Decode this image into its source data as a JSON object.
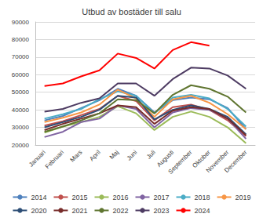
{
  "chart_data": {
    "type": "line",
    "title": "Utbud av bostäder till salu",
    "categories": [
      "Januari",
      "Februari",
      "Mars",
      "April",
      "Maj",
      "Juni",
      "Juli",
      "Augusti",
      "September",
      "Oktober",
      "November",
      "December"
    ],
    "series": [
      {
        "name": "2014",
        "color": "#4f81bd",
        "values": [
          34000,
          36500,
          41000,
          45500,
          52000,
          48000,
          38500,
          45500,
          47000,
          46000,
          41000,
          29000
        ]
      },
      {
        "name": "2015",
        "color": "#c0504d",
        "values": [
          31000,
          33500,
          37000,
          40500,
          48000,
          45000,
          34000,
          41500,
          43000,
          40000,
          34000,
          25000
        ]
      },
      {
        "name": "2016",
        "color": "#9bbb59",
        "values": [
          27000,
          30500,
          33000,
          36000,
          42000,
          38000,
          28500,
          36000,
          39000,
          36000,
          30000,
          21000
        ]
      },
      {
        "name": "2017",
        "color": "#8064a2",
        "values": [
          24500,
          27500,
          33000,
          35000,
          42500,
          40500,
          30000,
          38500,
          41000,
          40000,
          35000,
          23500
        ]
      },
      {
        "name": "2018",
        "color": "#4bacc6",
        "values": [
          35000,
          37500,
          40500,
          46000,
          50500,
          48000,
          38000,
          47000,
          48500,
          46500,
          40500,
          30500
        ]
      },
      {
        "name": "2019",
        "color": "#f79646",
        "values": [
          33000,
          35500,
          38500,
          43000,
          51500,
          46500,
          36000,
          46000,
          48000,
          44000,
          37500,
          29000
        ]
      },
      {
        "name": "2020",
        "color": "#2c4d75",
        "values": [
          30000,
          33000,
          36000,
          40000,
          48000,
          47000,
          34500,
          40000,
          42500,
          40500,
          36000,
          26000
        ]
      },
      {
        "name": "2021",
        "color": "#772c2a",
        "values": [
          28500,
          32000,
          35000,
          38000,
          42500,
          41500,
          32000,
          39500,
          41500,
          40500,
          35000,
          25500
        ]
      },
      {
        "name": "2022",
        "color": "#5f7530",
        "values": [
          27500,
          30500,
          34000,
          38000,
          46000,
          45500,
          38000,
          48500,
          54000,
          52000,
          47500,
          38500
        ]
      },
      {
        "name": "2023",
        "color": "#4d3b62",
        "values": [
          39000,
          40500,
          44000,
          46500,
          55000,
          55000,
          48000,
          57500,
          64000,
          63500,
          59500,
          52000
        ]
      },
      {
        "name": "2024",
        "color": "#ff0000",
        "values": [
          53500,
          55000,
          59000,
          62500,
          72000,
          69500,
          63500,
          74000,
          78500,
          76500,
          null,
          null
        ]
      }
    ],
    "ylim": [
      20000,
      90000
    ],
    "yticks": [
      20000,
      30000,
      40000,
      50000,
      60000,
      70000,
      80000,
      90000
    ],
    "grid": true,
    "legend": "bottom"
  }
}
